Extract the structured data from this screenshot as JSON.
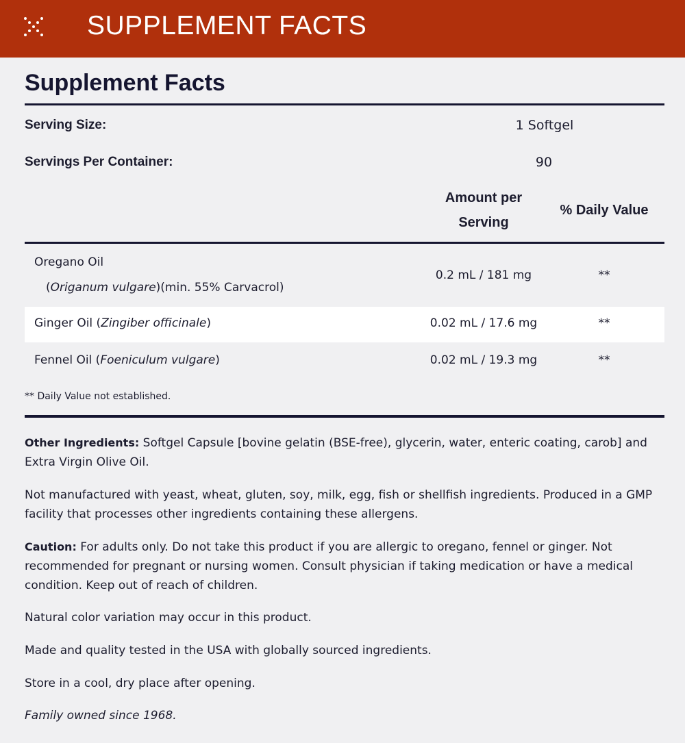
{
  "header": {
    "title": "SUPPLEMENT FACTS",
    "icon": "dots-x-icon",
    "color": "#b0300c"
  },
  "facts": {
    "title": "Supplement Facts",
    "serving_size_label": "Serving Size:",
    "serving_size": "1 Softgel",
    "servings_label": "Servings Per Container:",
    "servings": "90",
    "col_amount_1": "Amount per",
    "col_amount_2": "Serving",
    "col_dv": "% Daily Value",
    "rows": [
      {
        "name": "Oregano Oil",
        "sub_pre": "(",
        "sub_italic": "Origanum vulgare",
        "sub_post": ")(min. 55% Carvacrol)",
        "amount": "0.2 mL / 181 mg",
        "dv": "**"
      },
      {
        "name": "Ginger Oil (",
        "italic": "Zingiber officinale",
        "post": ")",
        "amount": "0.02 mL / 17.6 mg",
        "dv": "**"
      },
      {
        "name": "Fennel Oil (",
        "italic": "Foeniculum vulgare",
        "post": ")",
        "amount": "0.02 mL / 19.3 mg",
        "dv": "**"
      }
    ],
    "footnote": "** Daily Value not established."
  },
  "notes": {
    "other_label": "Other Ingredients:",
    "other_text": " Softgel Capsule [bovine gelatin (BSE-free), glycerin, water, enteric coating, carob] and Extra Virgin Olive Oil.",
    "allergen": "Not manufactured with yeast, wheat, gluten, soy, milk, egg, fish or shellfish ingredients. Produced in a GMP facility that processes other ingredients containing these allergens.",
    "caution_label": "Caution:",
    "caution_text": " For adults only. Do not take this product if you are allergic to oregano, fennel or ginger. Not recommended for pregnant or nursing women. Consult physician if taking medication or have a medical condition. Keep out of reach of children.",
    "color": "Natural color variation may occur in this product.",
    "made": "Made and quality tested in the USA with globally sourced ingredients.",
    "store": "Store in a cool, dry place after opening.",
    "family": "Family owned since 1968."
  }
}
